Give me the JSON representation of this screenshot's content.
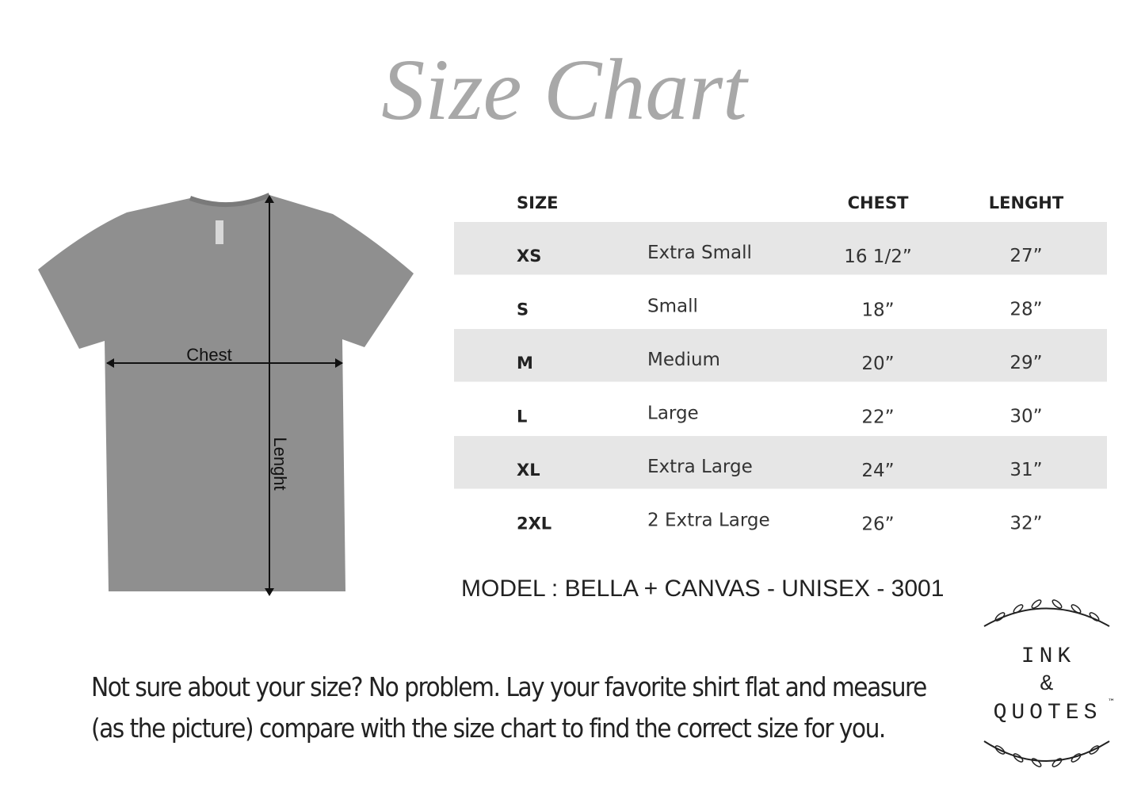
{
  "title": "Size Chart",
  "shirt": {
    "chest_label": "Chest",
    "length_label": "Lenght"
  },
  "table": {
    "headers": {
      "size": "SIZE",
      "chest": "CHEST",
      "length": "LENGHT"
    },
    "rows": [
      [
        "XS",
        "Extra Small",
        "16 1/2”",
        "27”"
      ],
      [
        "S",
        "Small",
        "18”",
        "28”"
      ],
      [
        "M",
        "Medium",
        "20”",
        "29”"
      ],
      [
        "L",
        "Large",
        "22”",
        "30”"
      ],
      [
        "XL",
        "Extra Large",
        "24”",
        "31”"
      ],
      [
        "2XL",
        "2 Extra Large",
        "26”",
        "32”"
      ]
    ]
  },
  "model": "MODEL : BELLA + CANVAS  - UNISEX - 3001",
  "note": [
    "Not sure about your size? No problem. Lay your favorite shirt flat and measure",
    "(as the picture) compare with the size chart to find the correct size for you."
  ],
  "logo": {
    "line1": "INK",
    "line2": "&",
    "line3": "QUOTES",
    "mark": "™"
  }
}
